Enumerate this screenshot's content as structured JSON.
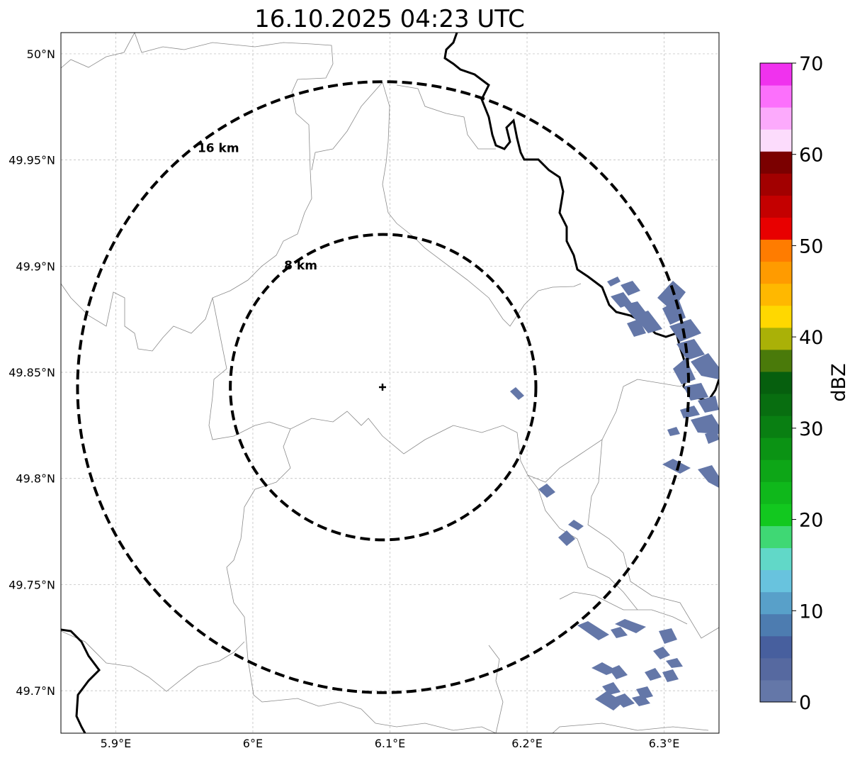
{
  "title": "16.10.2025 04:23 UTC",
  "map": {
    "lon_range": [
      5.86,
      6.34
    ],
    "lat_range": [
      49.68,
      50.01
    ],
    "lon_ticks": [
      {
        "value": 5.9,
        "label": "5.9°E"
      },
      {
        "value": 6.0,
        "label": "6°E"
      },
      {
        "value": 6.1,
        "label": "6.1°E"
      },
      {
        "value": 6.2,
        "label": "6.2°E"
      },
      {
        "value": 6.3,
        "label": "6.3°E"
      }
    ],
    "lat_ticks": [
      {
        "value": 50.0,
        "label": "50°N"
      },
      {
        "value": 49.95,
        "label": "49.95°N"
      },
      {
        "value": 49.9,
        "label": "49.9°N"
      },
      {
        "value": 49.85,
        "label": "49.85°N"
      },
      {
        "value": 49.8,
        "label": "49.8°N"
      },
      {
        "value": 49.75,
        "label": "49.75°N"
      },
      {
        "value": 49.7,
        "label": "49.7°N"
      }
    ],
    "grid": true,
    "radar_site": {
      "lon": 6.095,
      "lat": 49.843
    },
    "range_rings": [
      {
        "radius_km": 16,
        "label": "16 km"
      },
      {
        "radius_km": 8,
        "label": "8 km"
      }
    ],
    "echo_color": "#6477a8"
  },
  "colorbar": {
    "label": "dBZ",
    "min": 0,
    "max": 70,
    "step": 2.5,
    "ticks": [
      "0",
      "10",
      "20",
      "30",
      "40",
      "50",
      "60",
      "70"
    ],
    "colors": [
      "#6477a8",
      "#5669a0",
      "#475f9e",
      "#4d7cb0",
      "#58a0c9",
      "#68c3de",
      "#61d8c8",
      "#3fd874",
      "#12c81f",
      "#0fb81b",
      "#0da617",
      "#0b9314",
      "#097f12",
      "#086e10",
      "#065f0e",
      "#4a7a0a",
      "#aab107",
      "#ffd800",
      "#ffb800",
      "#ff9b00",
      "#ff7c00",
      "#e80000",
      "#c40000",
      "#a20000",
      "#7b0000",
      "#fcdcfc",
      "#fcaafc",
      "#fc70fc",
      "#f032ee"
    ]
  }
}
